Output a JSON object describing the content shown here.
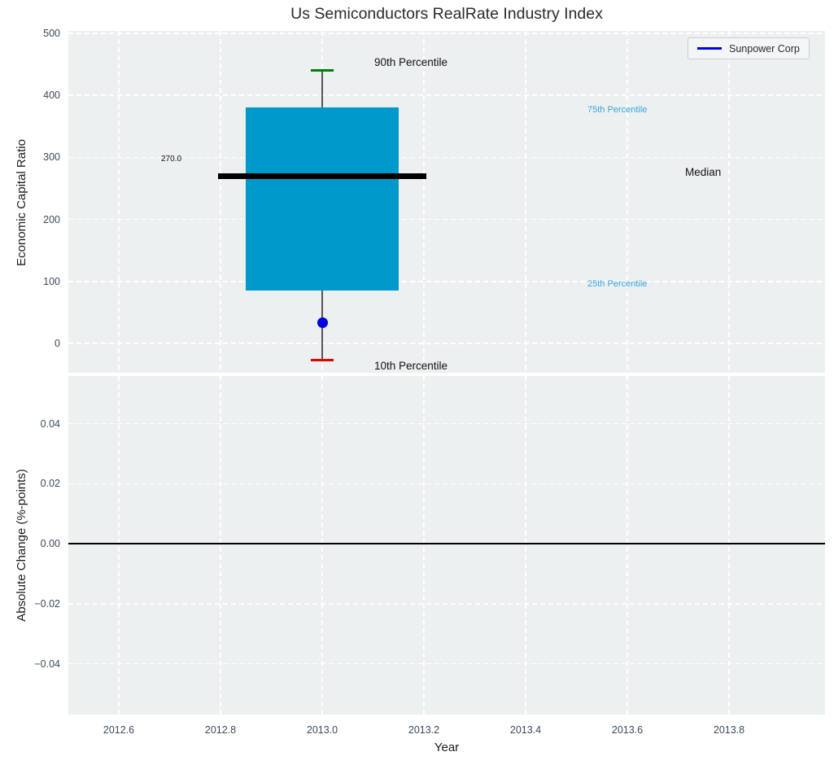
{
  "title": "Us Semiconductors RealRate Industry Index",
  "legend": {
    "label": "Sunpower Corp"
  },
  "annotations": {
    "p90": "90th Percentile",
    "p75": "75th Percentile",
    "median": "Median",
    "p25": "25th Percentile",
    "p10": "10th Percentile",
    "median_value_label": "270.0"
  },
  "axes": {
    "top": {
      "ylabel": "Economic Capital Ratio"
    },
    "bottom": {
      "ylabel": "Absolute Change (%-points)"
    },
    "x": {
      "label": "Year"
    }
  },
  "colors": {
    "plot_bg": "#ecf0f1",
    "grid": "#ffffff",
    "box_fill": "#0099cc",
    "median_line": "#000000",
    "whisker": "#555555",
    "cap_90th": "#008000",
    "cap_10th": "#e60000",
    "marker": "#0000dd",
    "legend_line": "#0000ee",
    "tick_label": "#3a4a5a",
    "percentile_label": "#38a5d9",
    "zero_line": "#000000"
  },
  "chart_data": {
    "type": "boxplot",
    "title": "Us Semiconductors RealRate Industry Index",
    "xlabel": "Year",
    "xlim": [
      2012.5,
      2013.99
    ],
    "xticks": [
      2012.6,
      2012.8,
      2013.0,
      2013.2,
      2013.4,
      2013.6,
      2013.8
    ],
    "grid": true,
    "legend_position": "upper right",
    "panels": [
      {
        "ylabel": "Economic Capital Ratio",
        "ylim": [
          -50,
          504
        ],
        "yticks": [
          0,
          100,
          200,
          300,
          400,
          500
        ],
        "box": {
          "x": 2013.0,
          "box_width_years": 0.3,
          "p10": -27,
          "p25": 85,
          "median": 270,
          "p75": 380,
          "p90": 440,
          "median_value_label": "270.0"
        },
        "series": [
          {
            "name": "Sunpower Corp",
            "type": "scatter",
            "x": [
              2013.0
            ],
            "y": [
              33
            ]
          }
        ],
        "annotations": [
          "90th Percentile",
          "75th Percentile",
          "Median",
          "25th Percentile",
          "10th Percentile"
        ]
      },
      {
        "ylabel": "Absolute Change (%-points)",
        "ylim": [
          -0.056,
          0.056
        ],
        "yticks": [
          -0.04,
          -0.02,
          0.0,
          0.02,
          0.04
        ],
        "zero_line": 0.0,
        "series": []
      }
    ]
  }
}
